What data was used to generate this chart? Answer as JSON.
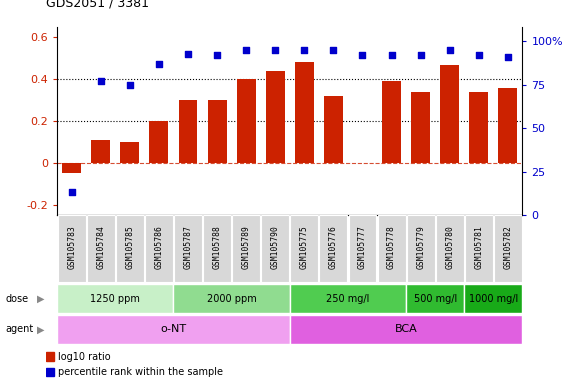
{
  "title": "GDS2051 / 3381",
  "samples": [
    "GSM105783",
    "GSM105784",
    "GSM105785",
    "GSM105786",
    "GSM105787",
    "GSM105788",
    "GSM105789",
    "GSM105790",
    "GSM105775",
    "GSM105776",
    "GSM105777",
    "GSM105778",
    "GSM105779",
    "GSM105780",
    "GSM105781",
    "GSM105782"
  ],
  "log10_ratio": [
    -0.05,
    0.11,
    0.1,
    0.2,
    0.3,
    0.3,
    0.4,
    0.44,
    0.48,
    0.32,
    0.0,
    0.39,
    0.34,
    0.47,
    0.34,
    0.36
  ],
  "percentile_rank": [
    13,
    77,
    75,
    87,
    93,
    92,
    95,
    95,
    95,
    95,
    92,
    92,
    92,
    95,
    92,
    91
  ],
  "bar_color": "#cc2200",
  "dot_color": "#0000cc",
  "dose_groups": [
    {
      "label": "1250 ppm",
      "start": 0,
      "end": 4,
      "color": "#c8f0c8"
    },
    {
      "label": "2000 ppm",
      "start": 4,
      "end": 8,
      "color": "#90dc90"
    },
    {
      "label": "250 mg/l",
      "start": 8,
      "end": 12,
      "color": "#50cc50"
    },
    {
      "label": "500 mg/l",
      "start": 12,
      "end": 14,
      "color": "#30bb30"
    },
    {
      "label": "1000 mg/l",
      "start": 14,
      "end": 16,
      "color": "#18aa18"
    }
  ],
  "agent_groups": [
    {
      "label": "o-NT",
      "start": 0,
      "end": 8,
      "color": "#f0a0f0"
    },
    {
      "label": "BCA",
      "start": 8,
      "end": 16,
      "color": "#e060e0"
    }
  ],
  "ylim_left": [
    -0.25,
    0.65
  ],
  "ylim_right": [
    0,
    108.33
  ],
  "yticks_left": [
    -0.2,
    0.0,
    0.2,
    0.4,
    0.6
  ],
  "yticks_right": [
    0,
    25,
    50,
    75,
    100
  ],
  "ytick_right_labels": [
    "0",
    "25",
    "50",
    "75",
    "100%"
  ],
  "hlines": [
    0.4,
    0.2
  ],
  "sample_box_color": "#d8d8d8",
  "legend": [
    {
      "color": "#cc2200",
      "label": "log10 ratio"
    },
    {
      "color": "#0000cc",
      "label": "percentile rank within the sample"
    }
  ]
}
